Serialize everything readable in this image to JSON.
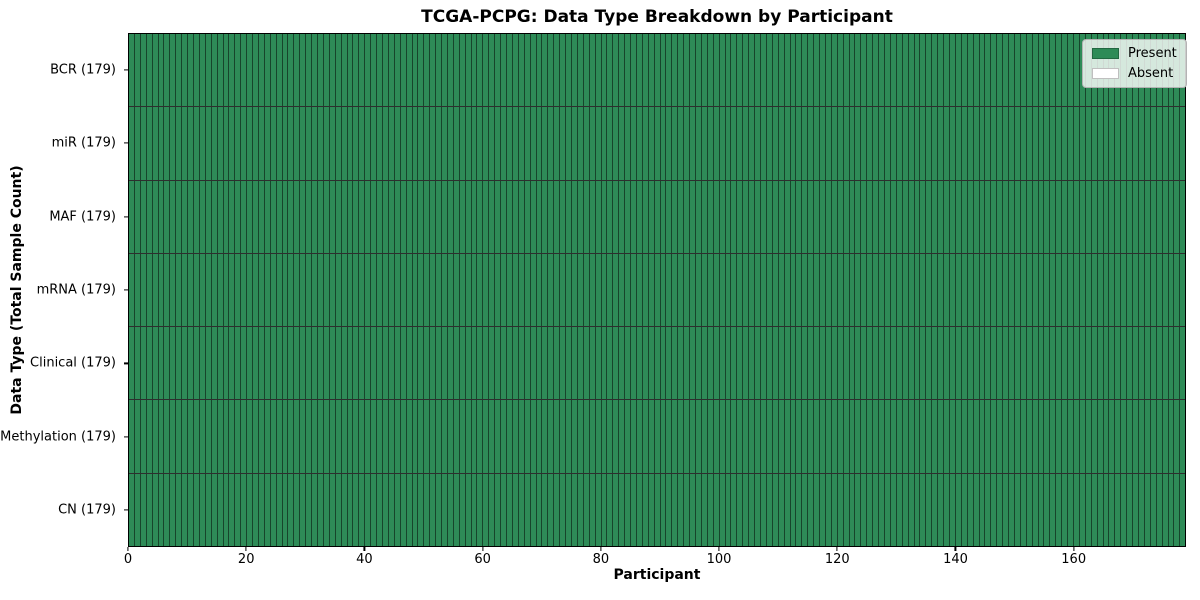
{
  "chart_data": {
    "type": "heatmap",
    "title": "TCGA-PCPG: Data Type Breakdown by Participant",
    "xlabel": "Participant",
    "ylabel": "Data Type (Total Sample Count)",
    "n_participants": 179,
    "xlim": [
      0,
      179
    ],
    "x_ticks": [
      0,
      20,
      40,
      60,
      80,
      100,
      120,
      140,
      160
    ],
    "grid": "cell-edges-only",
    "rows": [
      {
        "data_type": "BCR",
        "label": "BCR (179)",
        "total_samples": 179,
        "present_count": 179,
        "absent_count": 0
      },
      {
        "data_type": "miR",
        "label": "miR (179)",
        "total_samples": 179,
        "present_count": 179,
        "absent_count": 0
      },
      {
        "data_type": "MAF",
        "label": "MAF (179)",
        "total_samples": 179,
        "present_count": 179,
        "absent_count": 0
      },
      {
        "data_type": "mRNA",
        "label": "mRNA (179)",
        "total_samples": 179,
        "present_count": 179,
        "absent_count": 0
      },
      {
        "data_type": "Clinical",
        "label": "Clinical (179)",
        "total_samples": 179,
        "present_count": 179,
        "absent_count": 0
      },
      {
        "data_type": "Methylation",
        "label": "Methylation (179)",
        "total_samples": 179,
        "present_count": 179,
        "absent_count": 0
      },
      {
        "data_type": "CN",
        "label": "CN (179)",
        "total_samples": 179,
        "present_count": 179,
        "absent_count": 0
      }
    ],
    "legend": {
      "position": "upper-right",
      "entries": [
        {
          "label": "Present",
          "color": "#2E8B57"
        },
        {
          "label": "Absent",
          "color": "#FFFFFF"
        }
      ]
    },
    "colors": {
      "present": "#2E8B57",
      "absent": "#FFFFFF",
      "cell_edge": "#1C3A2B",
      "row_separator": "#000000",
      "background": "#FFFFFF"
    }
  }
}
